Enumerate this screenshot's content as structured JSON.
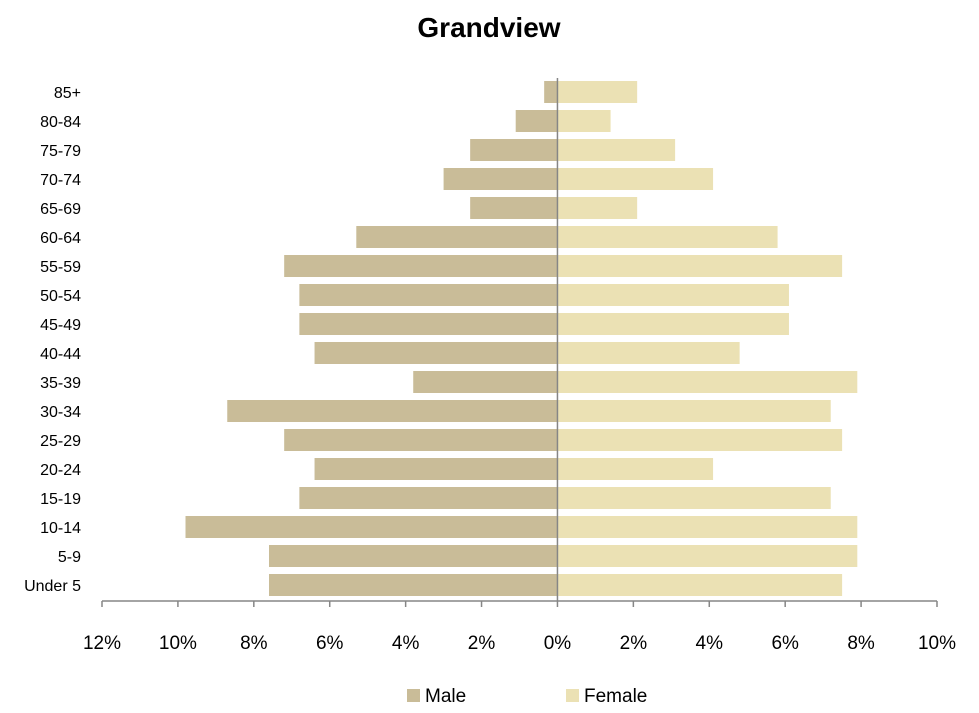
{
  "chart_data": {
    "type": "bar",
    "orientation": "horizontal",
    "title": "Grandview",
    "categories": [
      "85+",
      "80-84",
      "75-79",
      "70-74",
      "65-69",
      "60-64",
      "55-59",
      "50-54",
      "45-49",
      "40-44",
      "35-39",
      "30-34",
      "25-29",
      "20-24",
      "15-19",
      "10-14",
      "5-9",
      "Under 5"
    ],
    "series": [
      {
        "name": "Male",
        "color": "#c9bc98",
        "values": [
          0.35,
          1.1,
          2.3,
          3.0,
          2.3,
          5.3,
          7.2,
          6.8,
          6.8,
          6.4,
          3.8,
          8.7,
          7.2,
          6.4,
          6.8,
          9.8,
          7.6,
          7.6
        ]
      },
      {
        "name": "Female",
        "color": "#ebe1b4",
        "values": [
          2.1,
          1.4,
          3.1,
          4.1,
          2.1,
          5.8,
          7.5,
          6.1,
          6.1,
          4.8,
          7.9,
          7.2,
          7.5,
          4.1,
          7.2,
          7.9,
          7.9,
          7.5
        ]
      }
    ],
    "xlim": [
      -12,
      10
    ],
    "x_ticks": [
      -12,
      -10,
      -8,
      -6,
      -4,
      -2,
      0,
      2,
      4,
      6,
      8,
      10
    ],
    "x_tick_labels": [
      "12%",
      "10%",
      "8%",
      "6%",
      "4%",
      "2%",
      "0%",
      "2%",
      "4%",
      "6%",
      "8%",
      "10%"
    ],
    "xlabel": "",
    "ylabel": "",
    "grid": false,
    "legend": "bottom"
  }
}
